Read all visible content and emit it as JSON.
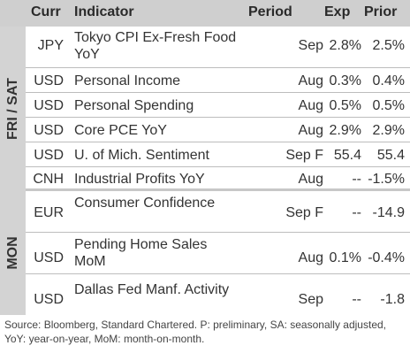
{
  "header": {
    "curr": "Curr",
    "indicator": "Indicator",
    "period": "Period",
    "exp": "Exp",
    "prior": "Prior"
  },
  "groups": {
    "fri_sat": "FRI / SAT",
    "mon": "MON"
  },
  "rows": [
    {
      "curr": "JPY",
      "indicator": "Tokyo CPI Ex-Fresh Food YoY",
      "period": "Sep",
      "exp": "2.8%",
      "prior": "2.5%"
    },
    {
      "curr": "USD",
      "indicator": "Personal Income",
      "period": "Aug",
      "exp": "0.3%",
      "prior": "0.4%"
    },
    {
      "curr": "USD",
      "indicator": "Personal Spending",
      "period": "Aug",
      "exp": "0.5%",
      "prior": "0.5%"
    },
    {
      "curr": "USD",
      "indicator": "Core PCE YoY",
      "period": "Aug",
      "exp": "2.9%",
      "prior": "2.9%"
    },
    {
      "curr": "USD",
      "indicator": "U. of Mich. Sentiment",
      "period": "Sep F",
      "exp": "55.4",
      "prior": "55.4"
    },
    {
      "curr": "CNH",
      "indicator": "Industrial Profits YoY",
      "period": "Aug",
      "exp": "--",
      "prior": "-1.5%"
    },
    {
      "curr": "EUR",
      "indicator": "Consumer Confidence",
      "period": "Sep F",
      "exp": "--",
      "prior": "-14.9"
    },
    {
      "curr": "USD",
      "indicator": "Pending Home Sales MoM",
      "period": "Aug",
      "exp": "0.1%",
      "prior": "-0.4%"
    },
    {
      "curr": "USD",
      "indicator": "Dallas Fed Manf. Activity",
      "period": "Sep",
      "exp": "--",
      "prior": "-1.8"
    }
  ],
  "source": "Source: Bloomberg, Standard Chartered. P: preliminary, SA: seasonally adjusted, YoY: year-on-year, MoM: month-on-month."
}
